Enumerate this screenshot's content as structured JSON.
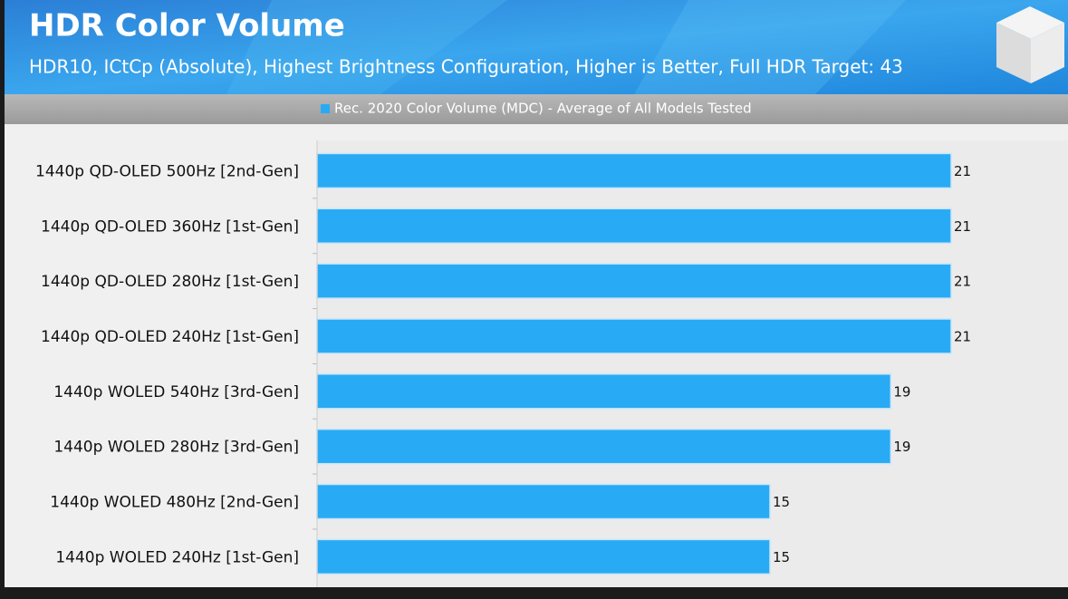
{
  "chart_data": {
    "type": "bar",
    "title": "HDR Color Volume",
    "subtitle": "HDR10, ICtCp (Absolute), Highest Brightness Configuration, Higher is Better, Full HDR Target: 43",
    "categories": [
      "1440p QD-OLED 500Hz [2nd-Gen]",
      "1440p QD-OLED 360Hz [1st-Gen]",
      "1440p QD-OLED 280Hz [1st-Gen]",
      "1440p QD-OLED 240Hz [1st-Gen]",
      "1440p WOLED 540Hz [3rd-Gen]",
      "1440p WOLED 280Hz [3rd-Gen]",
      "1440p WOLED 480Hz [2nd-Gen]",
      "1440p WOLED 240Hz [1st-Gen]"
    ],
    "series": [
      {
        "name": "Rec. 2020 Color Volume (MDC) - Average of All Models Tested",
        "color": "#29aaf4",
        "values": [
          21,
          21,
          21,
          21,
          19,
          19,
          15,
          15
        ]
      }
    ]
  }
}
